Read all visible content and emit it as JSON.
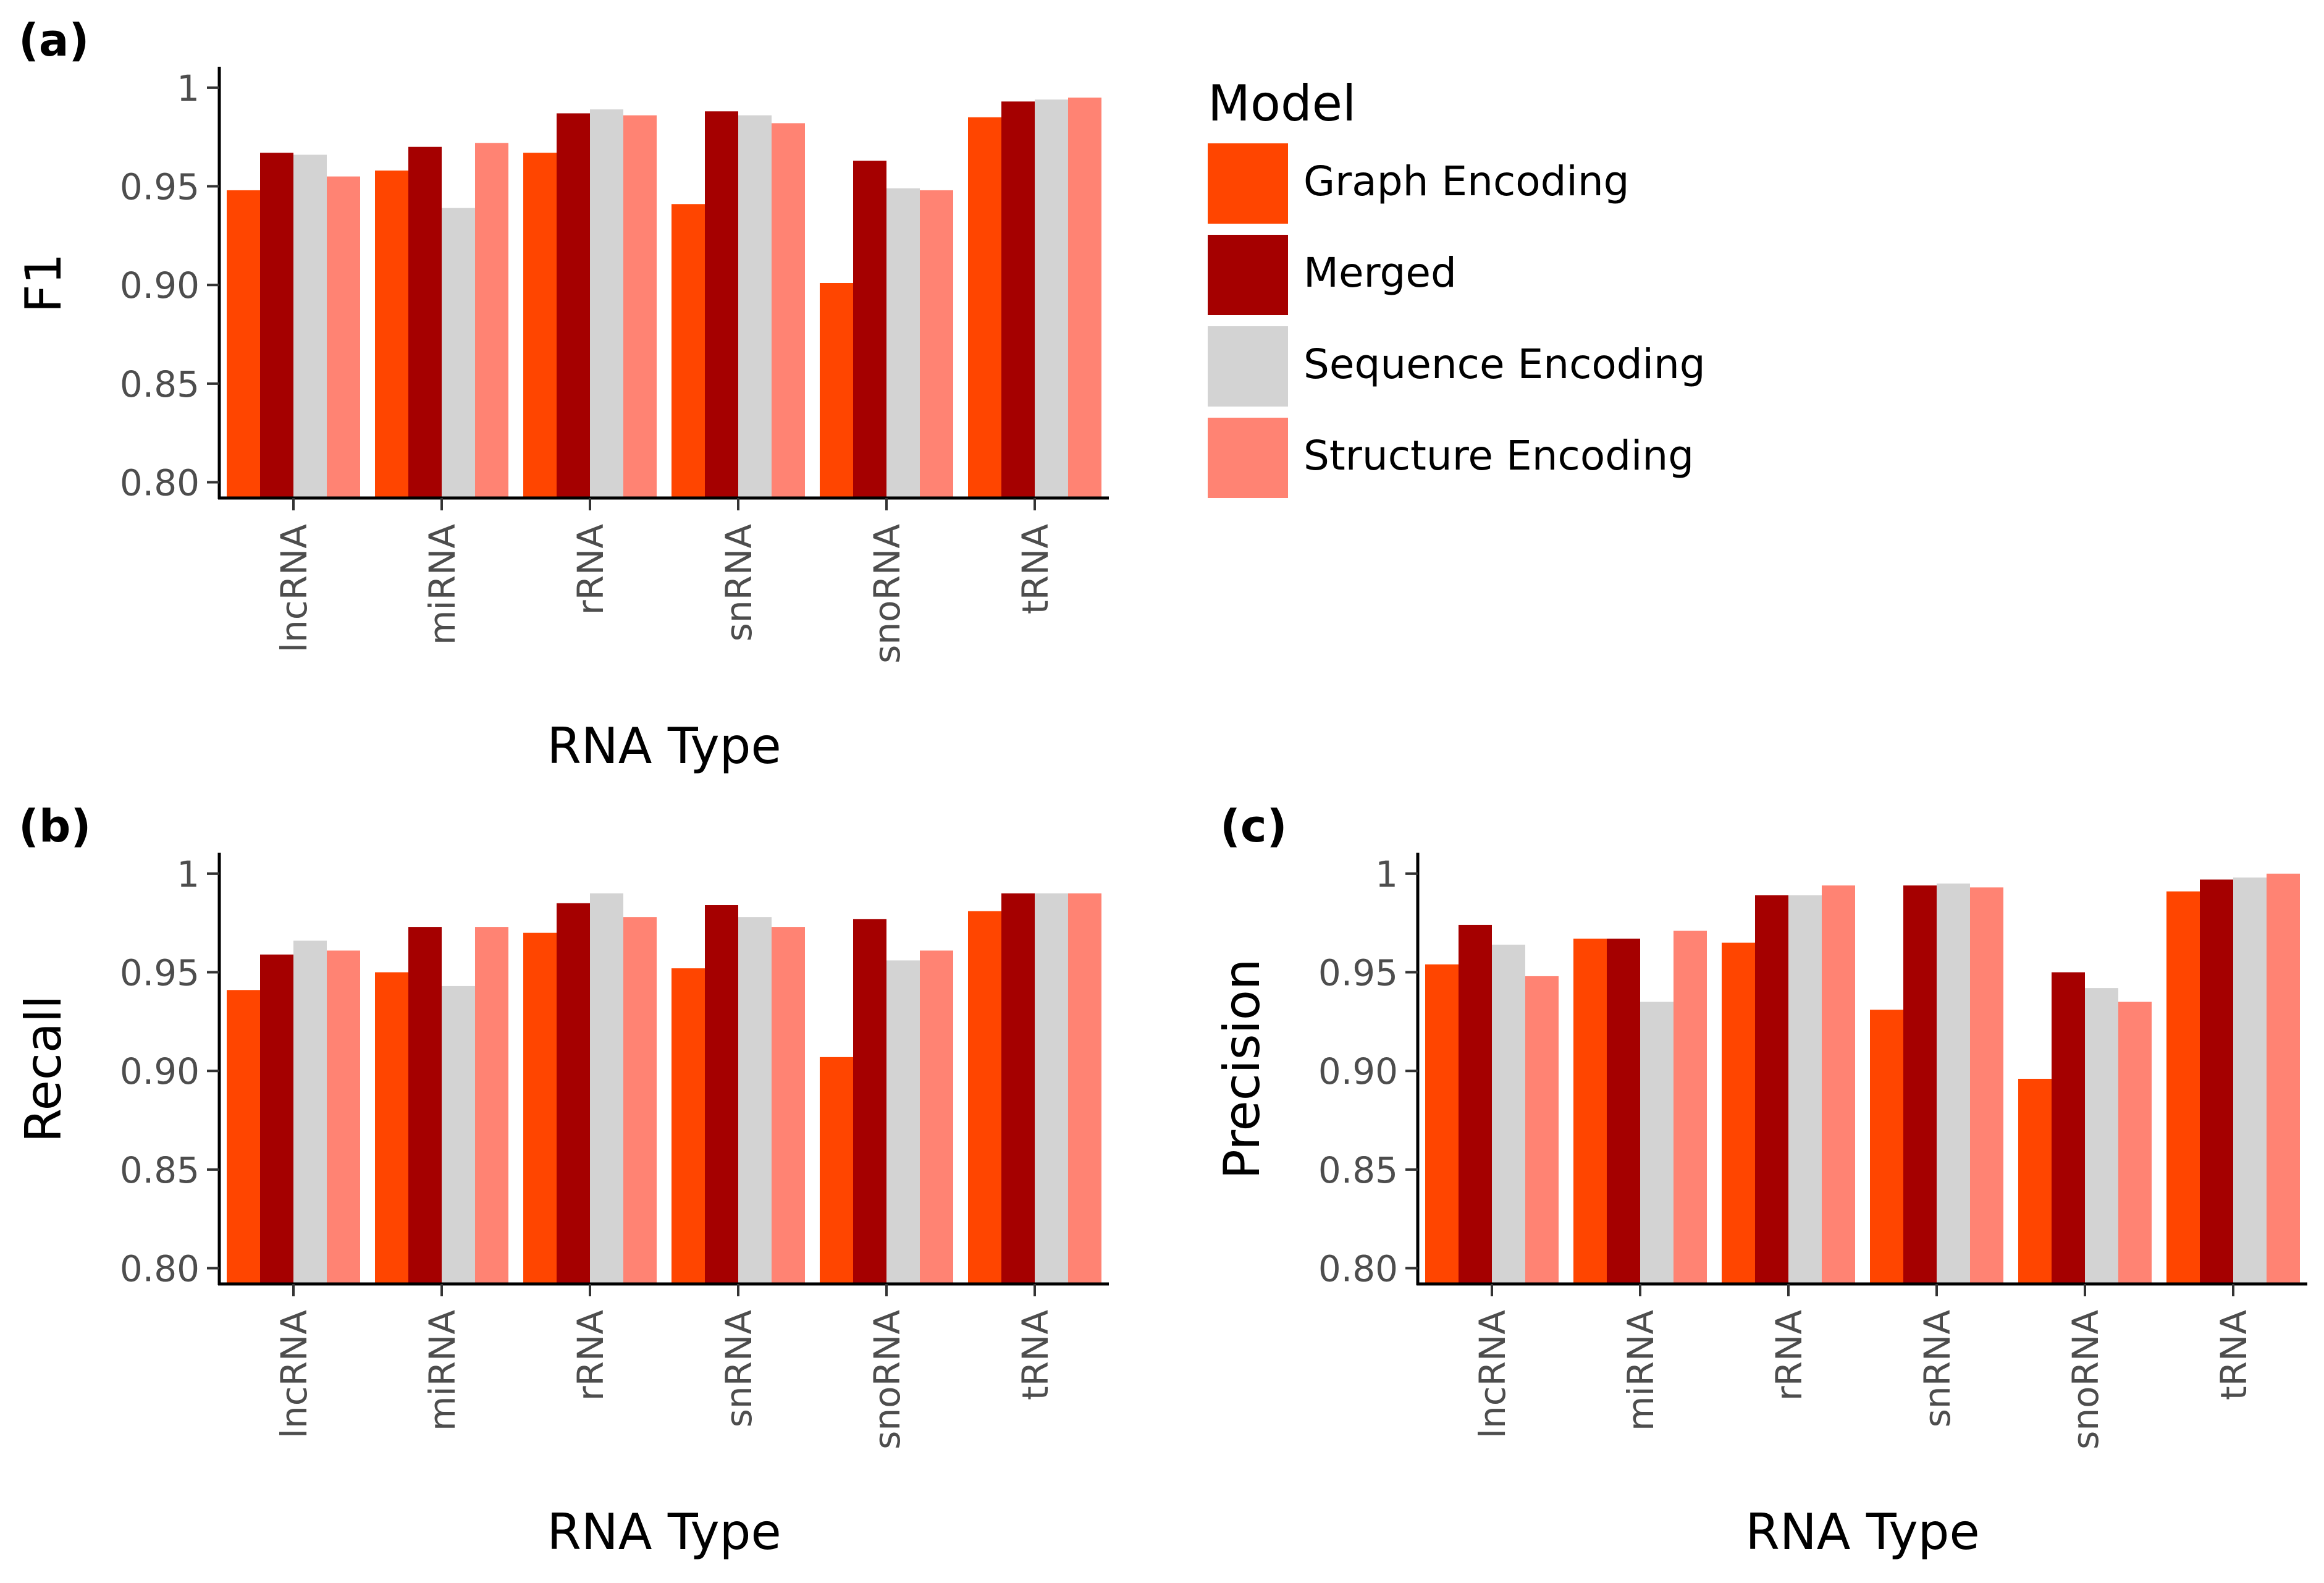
{
  "legend": {
    "title": "Model",
    "items": [
      {
        "label": "Graph Encoding",
        "color": "#FF4500"
      },
      {
        "label": "Merged",
        "color": "#A50000"
      },
      {
        "label": "Sequence Encoding",
        "color": "#D3D3D3"
      },
      {
        "label": "Structure Encoding",
        "color": "#FF8373"
      }
    ]
  },
  "chart_data": [
    {
      "type": "bar",
      "panel_label": "(a)",
      "xlabel": "RNA Type",
      "ylabel": "F1",
      "categories": [
        "lncRNA",
        "miRNA",
        "rRNA",
        "snRNA",
        "snoRNA",
        "tRNA"
      ],
      "ylim": [
        0.792,
        1.01
      ],
      "yticks": [
        0.8,
        0.85,
        0.9,
        0.95,
        1
      ],
      "ytick_labels": [
        "0.80",
        "0.85",
        "0.90",
        "0.95",
        "1"
      ],
      "grid": false,
      "legend_position": "right",
      "series": [
        {
          "name": "Graph Encoding",
          "values": [
            0.948,
            0.958,
            0.967,
            0.941,
            0.901,
            0.985
          ]
        },
        {
          "name": "Merged",
          "values": [
            0.967,
            0.97,
            0.987,
            0.988,
            0.963,
            0.993
          ]
        },
        {
          "name": "Sequence Encoding",
          "values": [
            0.966,
            0.939,
            0.989,
            0.986,
            0.949,
            0.994
          ]
        },
        {
          "name": "Structure Encoding",
          "values": [
            0.955,
            0.972,
            0.986,
            0.982,
            0.948,
            0.995
          ]
        }
      ]
    },
    {
      "type": "bar",
      "panel_label": "(b)",
      "xlabel": "RNA Type",
      "ylabel": "Recall",
      "categories": [
        "lncRNA",
        "miRNA",
        "rRNA",
        "snRNA",
        "snoRNA",
        "tRNA"
      ],
      "ylim": [
        0.792,
        1.01
      ],
      "yticks": [
        0.8,
        0.85,
        0.9,
        0.95,
        1
      ],
      "ytick_labels": [
        "0.80",
        "0.85",
        "0.90",
        "0.95",
        "1"
      ],
      "grid": false,
      "series": [
        {
          "name": "Graph Encoding",
          "values": [
            0.941,
            0.95,
            0.97,
            0.952,
            0.907,
            0.981
          ]
        },
        {
          "name": "Merged",
          "values": [
            0.959,
            0.973,
            0.985,
            0.984,
            0.977,
            0.99
          ]
        },
        {
          "name": "Sequence Encoding",
          "values": [
            0.966,
            0.943,
            0.99,
            0.978,
            0.956,
            0.99
          ]
        },
        {
          "name": "Structure Encoding",
          "values": [
            0.961,
            0.973,
            0.978,
            0.973,
            0.961,
            0.99
          ]
        }
      ]
    },
    {
      "type": "bar",
      "panel_label": "(c)",
      "xlabel": "RNA Type",
      "ylabel": "Precision",
      "categories": [
        "lncRNA",
        "miRNA",
        "rRNA",
        "snRNA",
        "snoRNA",
        "tRNA"
      ],
      "ylim": [
        0.792,
        1.01
      ],
      "yticks": [
        0.8,
        0.85,
        0.9,
        0.95,
        1
      ],
      "ytick_labels": [
        "0.80",
        "0.85",
        "0.90",
        "0.95",
        "1"
      ],
      "grid": false,
      "series": [
        {
          "name": "Graph Encoding",
          "values": [
            0.954,
            0.967,
            0.965,
            0.931,
            0.896,
            0.991
          ]
        },
        {
          "name": "Merged",
          "values": [
            0.974,
            0.967,
            0.989,
            0.994,
            0.95,
            0.997
          ]
        },
        {
          "name": "Sequence Encoding",
          "values": [
            0.964,
            0.935,
            0.989,
            0.995,
            0.942,
            0.998
          ]
        },
        {
          "name": "Structure Encoding",
          "values": [
            0.948,
            0.971,
            0.994,
            0.993,
            0.935,
            1.0
          ]
        }
      ]
    }
  ]
}
